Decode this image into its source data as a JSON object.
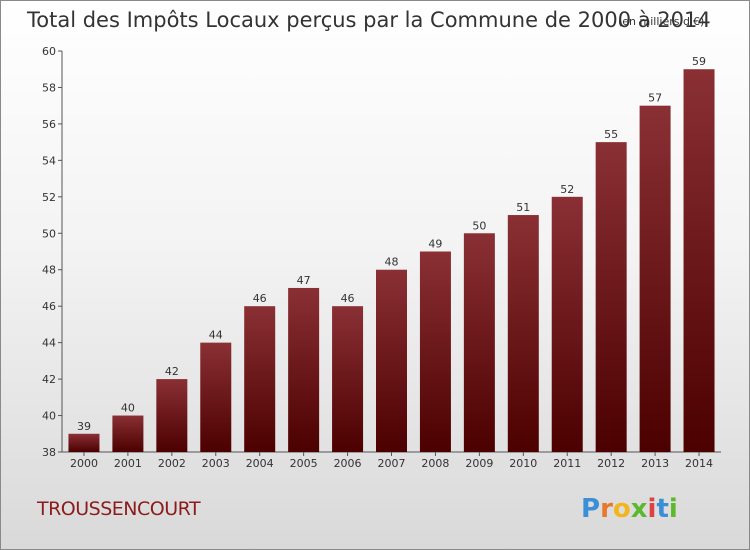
{
  "chart_data": {
    "type": "bar",
    "title": "Total des Impôts Locaux perçus par la Commune de 2000 à 2014",
    "title_unit": "(en milliers d'€)",
    "categories": [
      "2000",
      "2001",
      "2002",
      "2003",
      "2004",
      "2005",
      "2006",
      "2007",
      "2008",
      "2009",
      "2010",
      "2011",
      "2012",
      "2013",
      "2014"
    ],
    "values": [
      39,
      40,
      42,
      44,
      46,
      47,
      46,
      48,
      49,
      50,
      51,
      52,
      55,
      57,
      59
    ],
    "ylim": [
      38,
      60
    ],
    "yticks": [
      "38",
      "40",
      "42",
      "44",
      "46",
      "48",
      "50",
      "52",
      "54",
      "56",
      "58",
      "60"
    ],
    "bar_color_top": "#8a3035",
    "bar_color_bottom": "#4c0000",
    "grid": false
  },
  "commune": "TROUSSENCOURT",
  "logo": {
    "letters": [
      "P",
      "r",
      "o",
      "x",
      "i",
      "t",
      "i"
    ],
    "colors": [
      "#3a8fd6",
      "#e8792a",
      "#f2b51d",
      "#5cb82e",
      "#e04040",
      "#3a8fd6",
      "#5cb82e"
    ]
  }
}
